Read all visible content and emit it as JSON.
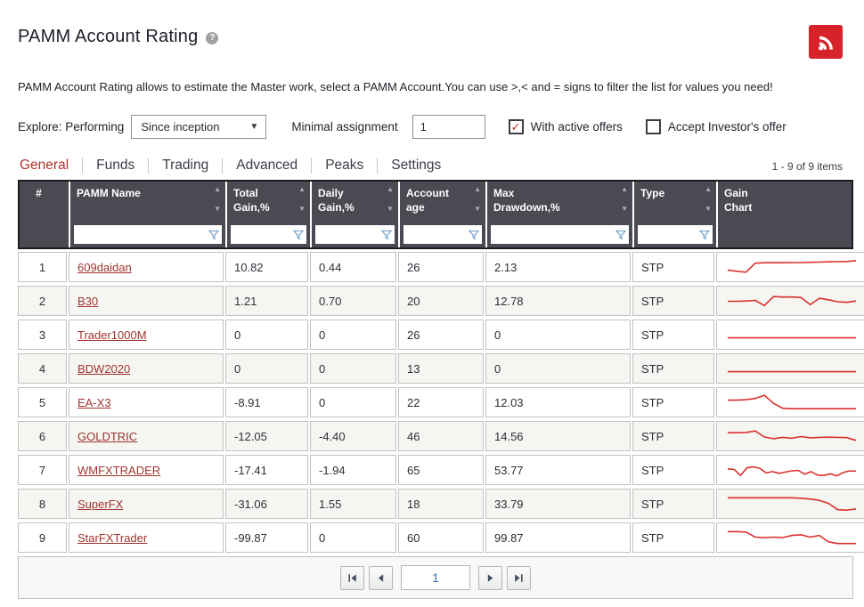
{
  "page": {
    "title": "PAMM Account Rating",
    "help_icon": "question-mark",
    "rss_icon": "rss",
    "description": "PAMM Account Rating allows to estimate the Master work, select a PAMM Account.You can use >,< and = signs to filter the list for values you need!"
  },
  "filters": {
    "explore_label": "Explore: Performing",
    "period_selected": "Since inception",
    "minimal_assignment_label": "Minimal assignment",
    "minimal_assignment_value": "1",
    "with_active_offers": {
      "label": "With active offers",
      "checked": true
    },
    "accept_investors_offer": {
      "label": "Accept Investor's offer",
      "checked": false
    }
  },
  "tabs": {
    "items": [
      {
        "label": "General",
        "active": true
      },
      {
        "label": "Funds",
        "active": false
      },
      {
        "label": "Trading",
        "active": false
      },
      {
        "label": "Advanced",
        "active": false
      },
      {
        "label": "Peaks",
        "active": false
      },
      {
        "label": "Settings",
        "active": false
      }
    ],
    "items_count_text": "1 - 9 of 9 items"
  },
  "table": {
    "columns": [
      {
        "key": "index",
        "label": "#",
        "sortable": false,
        "filterable": false
      },
      {
        "key": "name",
        "label": "PAMM Name",
        "sortable": true,
        "filterable": true
      },
      {
        "key": "total_gain",
        "label": "Total\nGain,%",
        "sortable": true,
        "filterable": true
      },
      {
        "key": "daily_gain",
        "label": "Daily\nGain,%",
        "sortable": true,
        "filterable": true
      },
      {
        "key": "account_age",
        "label": "Account\nage",
        "sortable": true,
        "filterable": true
      },
      {
        "key": "max_drawdown",
        "label": "Max\nDrawdown,%",
        "sortable": true,
        "filterable": true
      },
      {
        "key": "type",
        "label": "Type",
        "sortable": true,
        "filterable": true
      },
      {
        "key": "gain_chart",
        "label": "Gain\nChart",
        "sortable": false,
        "filterable": false
      }
    ],
    "rows": [
      {
        "index": "1",
        "name": "609daidan",
        "total_gain": "10.82",
        "daily_gain": "0.44",
        "account_age": "26",
        "max_drawdown": "2.13",
        "type": "STP",
        "spark": [
          36,
          30,
          26,
          68,
          70,
          70,
          70,
          71,
          71,
          72,
          73,
          74,
          75,
          76,
          80
        ]
      },
      {
        "index": "2",
        "name": "B30",
        "total_gain": "1.21",
        "daily_gain": "0.70",
        "account_age": "20",
        "max_drawdown": "12.78",
        "type": "STP",
        "spark": [
          48,
          48,
          49,
          52,
          28,
          70,
          68,
          68,
          66,
          32,
          62,
          55,
          46,
          43,
          49
        ]
      },
      {
        "index": "3",
        "name": "Trader1000M",
        "total_gain": "0",
        "daily_gain": "0",
        "account_age": "26",
        "max_drawdown": "0",
        "type": "STP",
        "spark": [
          35,
          35,
          35,
          35,
          35,
          35,
          35,
          35,
          35,
          35,
          35,
          35,
          35,
          35,
          35
        ]
      },
      {
        "index": "4",
        "name": "BDW2020",
        "total_gain": "0",
        "daily_gain": "0",
        "account_age": "13",
        "max_drawdown": "0",
        "type": "STP",
        "spark": [
          35,
          35,
          35,
          35,
          35,
          35,
          35,
          35,
          35,
          35,
          35,
          35,
          35,
          35,
          35
        ]
      },
      {
        "index": "5",
        "name": "EA-X3",
        "total_gain": "-8.91",
        "daily_gain": "0",
        "account_age": "22",
        "max_drawdown": "12.03",
        "type": "STP",
        "spark": [
          60,
          60,
          62,
          68,
          83,
          45,
          22,
          20,
          20,
          20,
          20,
          20,
          20,
          20,
          20
        ]
      },
      {
        "index": "6",
        "name": "GOLDTRIC",
        "total_gain": "-12.05",
        "daily_gain": "-4.40",
        "account_age": "46",
        "max_drawdown": "14.56",
        "type": "STP",
        "spark": [
          66,
          66,
          67,
          74,
          46,
          38,
          44,
          40,
          48,
          42,
          44,
          45,
          44,
          43,
          30
        ]
      },
      {
        "index": "7",
        "name": "WMFXTRADER",
        "total_gain": "-17.41",
        "daily_gain": "-1.94",
        "account_age": "65",
        "max_drawdown": "53.77",
        "type": "STP",
        "spark": [
          55,
          52,
          24,
          60,
          64,
          58,
          36,
          42,
          34,
          40,
          46,
          48,
          30,
          42,
          26,
          24,
          32,
          22,
          38,
          46,
          44
        ]
      },
      {
        "index": "8",
        "name": "SuperFX",
        "total_gain": "-31.06",
        "daily_gain": "1.55",
        "account_age": "18",
        "max_drawdown": "33.79",
        "type": "STP",
        "spark": [
          78,
          78,
          78,
          78,
          78,
          78,
          78,
          78,
          76,
          72,
          66,
          52,
          22,
          20,
          26
        ]
      },
      {
        "index": "9",
        "name": "StarFXTrader",
        "total_gain": "-99.87",
        "daily_gain": "0",
        "account_age": "60",
        "max_drawdown": "99.87",
        "type": "STP",
        "spark": [
          78,
          78,
          76,
          52,
          50,
          52,
          50,
          60,
          63,
          52,
          60,
          30,
          22,
          22,
          22
        ]
      }
    ]
  },
  "pagination": {
    "page_value": "1"
  },
  "colors": {
    "header_bg": "#4a4b52",
    "accent_red": "#b7302a",
    "link_red": "#a0342e",
    "spark_red": "#d9302c",
    "rss_red": "#d6232b",
    "filter_funnel_blue": "#6b9dc8",
    "page_number_blue": "#3072ac"
  }
}
